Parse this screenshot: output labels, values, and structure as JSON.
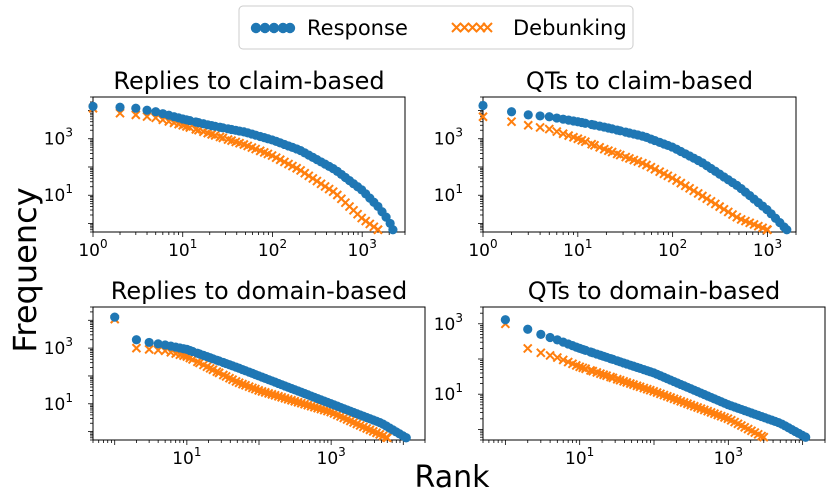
{
  "figure": {
    "ylabel": "Frequency",
    "xlabel": "Rank"
  },
  "legend": {
    "placement": "top-center",
    "entries": [
      {
        "label": "Response",
        "marker": "circle",
        "color": "#1f77b4"
      },
      {
        "label": "Debunking",
        "marker": "x",
        "color": "#ff7f0e"
      }
    ]
  },
  "chart_data": [
    {
      "type": "scatter",
      "title": "Replies to claim-based",
      "xscale": "log",
      "yscale": "log",
      "xlim": [
        1,
        3000
      ],
      "ylim": [
        0.5,
        30000
      ],
      "xticks": [
        {
          "v": 1,
          "label": "10",
          "exp": "0"
        },
        {
          "v": 10,
          "label": "10",
          "exp": "1"
        },
        {
          "v": 100,
          "label": "10",
          "exp": "2"
        },
        {
          "v": 1000,
          "label": "10",
          "exp": "3"
        }
      ],
      "yticks": [
        {
          "v": 10,
          "label": "10",
          "exp": "1"
        },
        {
          "v": 1000,
          "label": "10",
          "exp": "3"
        }
      ],
      "series": [
        {
          "name": "Response",
          "marker": "circle",
          "color": "#1f77b4",
          "n_max": 2200,
          "y_max": 14000,
          "decay": "curved",
          "x": [
            1,
            2,
            3,
            5,
            10,
            20,
            50,
            100,
            200,
            500,
            1000,
            1500,
            2000,
            2200
          ],
          "y": [
            14000,
            13000,
            12000,
            9000,
            5000,
            3000,
            1700,
            900,
            400,
            80,
            15,
            4,
            1.2,
            0.6
          ]
        },
        {
          "name": "Debunking",
          "marker": "x",
          "color": "#ff7f0e",
          "n_max": 1500,
          "y_max": 12000,
          "decay": "curved",
          "x": [
            1,
            2,
            3,
            5,
            10,
            20,
            50,
            100,
            200,
            500,
            1000,
            1500
          ],
          "y": [
            12000,
            8000,
            7000,
            5500,
            3000,
            1500,
            600,
            250,
            80,
            12,
            1.5,
            0.6
          ]
        }
      ]
    },
    {
      "type": "scatter",
      "title": "QTs to claim-based",
      "xscale": "log",
      "yscale": "log",
      "xlim": [
        1,
        2000
      ],
      "ylim": [
        0.5,
        30000
      ],
      "xticks": [
        {
          "v": 1,
          "label": "10",
          "exp": "0"
        },
        {
          "v": 10,
          "label": "10",
          "exp": "1"
        },
        {
          "v": 100,
          "label": "10",
          "exp": "2"
        },
        {
          "v": 1000,
          "label": "10",
          "exp": "3"
        }
      ],
      "yticks": [
        {
          "v": 10,
          "label": "10",
          "exp": "1"
        },
        {
          "v": 1000,
          "label": "10",
          "exp": "3"
        }
      ],
      "series": [
        {
          "name": "Response",
          "marker": "circle",
          "color": "#1f77b4",
          "n_max": 1600,
          "y_max": 15000,
          "decay": "curved",
          "x": [
            1,
            2,
            3,
            5,
            10,
            20,
            50,
            100,
            200,
            500,
            1000,
            1600
          ],
          "y": [
            15000,
            9000,
            7000,
            6000,
            4000,
            2500,
            1200,
            500,
            150,
            20,
            3,
            0.6
          ]
        },
        {
          "name": "Debunking",
          "marker": "x",
          "color": "#ff7f0e",
          "n_max": 1000,
          "y_max": 6000,
          "decay": "curved",
          "x": [
            1,
            2,
            3,
            5,
            10,
            20,
            50,
            100,
            200,
            500,
            1000
          ],
          "y": [
            6000,
            4000,
            3000,
            2200,
            1000,
            400,
            130,
            40,
            10,
            1.5,
            0.6
          ]
        }
      ]
    },
    {
      "type": "scatter",
      "title": "Replies to domain-based",
      "xscale": "log",
      "yscale": "log",
      "xlim": [
        0.5,
        20000
      ],
      "ylim": [
        0.5,
        30000
      ],
      "xticks": [
        {
          "v": 10,
          "label": "10",
          "exp": "1"
        },
        {
          "v": 1000,
          "label": "10",
          "exp": "3"
        }
      ],
      "yticks": [
        {
          "v": 10,
          "label": "10",
          "exp": "1"
        },
        {
          "v": 1000,
          "label": "10",
          "exp": "3"
        }
      ],
      "series": [
        {
          "name": "Response",
          "marker": "circle",
          "color": "#1f77b4",
          "n_max": 11000,
          "y_max": 13000,
          "decay": "powerlaw",
          "x": [
            1,
            2,
            3,
            5,
            10,
            50,
            100,
            1000,
            5000,
            11000
          ],
          "y": [
            13000,
            2000,
            1600,
            1300,
            900,
            200,
            100,
            10,
            2,
            0.6
          ]
        },
        {
          "name": "Debunking",
          "marker": "x",
          "color": "#ff7f0e",
          "n_max": 6000,
          "y_max": 11000,
          "decay": "powerlaw",
          "x": [
            1,
            2,
            3,
            5,
            10,
            50,
            100,
            1000,
            6000
          ],
          "y": [
            11000,
            1000,
            900,
            800,
            500,
            60,
            30,
            5,
            0.6
          ]
        }
      ]
    },
    {
      "type": "scatter",
      "title": "QTs to domain-based",
      "xscale": "log",
      "yscale": "log",
      "xlim": [
        0.5,
        20000
      ],
      "ylim": [
        0.5,
        3000
      ],
      "xticks": [
        {
          "v": 10,
          "label": "10",
          "exp": "1"
        },
        {
          "v": 1000,
          "label": "10",
          "exp": "3"
        }
      ],
      "yticks": [
        {
          "v": 10,
          "label": "10",
          "exp": "1"
        },
        {
          "v": 1000,
          "label": "10",
          "exp": "3"
        }
      ],
      "series": [
        {
          "name": "Response",
          "marker": "circle",
          "color": "#1f77b4",
          "n_max": 11000,
          "y_max": 1300,
          "decay": "powerlaw",
          "x": [
            1,
            2,
            3,
            5,
            10,
            100,
            1000,
            5000,
            11000
          ],
          "y": [
            1300,
            700,
            500,
            350,
            200,
            40,
            5,
            1.5,
            0.6
          ]
        },
        {
          "name": "Debunking",
          "marker": "x",
          "color": "#ff7f0e",
          "n_max": 3000,
          "y_max": 1000,
          "decay": "powerlaw",
          "x": [
            1,
            2,
            3,
            5,
            10,
            100,
            1000,
            3000
          ],
          "y": [
            1000,
            200,
            150,
            110,
            60,
            12,
            2,
            0.6
          ]
        }
      ]
    }
  ]
}
